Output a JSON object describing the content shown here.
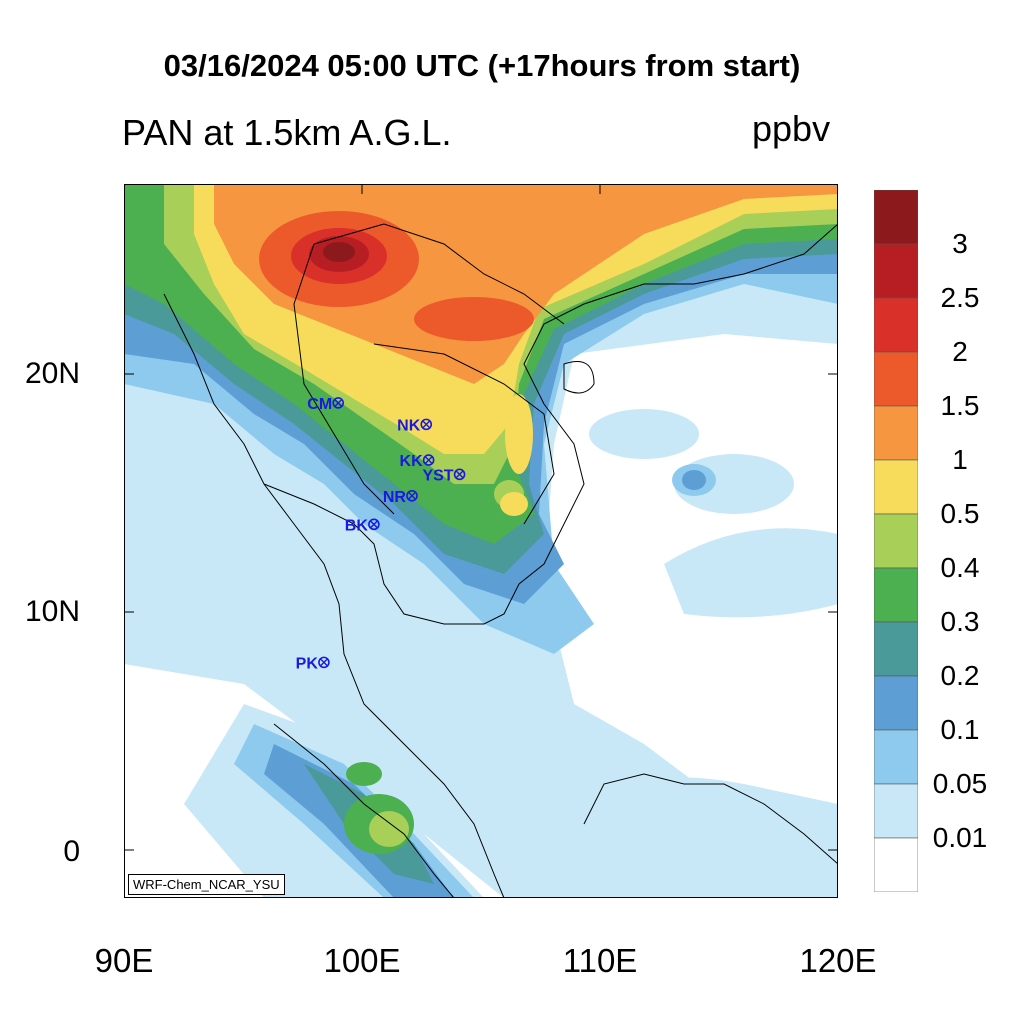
{
  "title": "03/16/2024 05:00 UTC (+17hours from start)",
  "subtitle": "PAN at 1.5km A.G.L.",
  "units": "ppbv",
  "credit": "WRF-Chem_NCAR_YSU",
  "lon_labels": [
    "90E",
    "100E",
    "110E",
    "120E"
  ],
  "lat_labels": [
    "20N",
    "10N",
    "0"
  ],
  "colorbar": {
    "labels": [
      "3",
      "2.5",
      "2",
      "1.5",
      "1",
      "0.5",
      "0.4",
      "0.3",
      "0.2",
      "0.1",
      "0.05",
      "0.01"
    ],
    "colors": [
      "#8c1a1d",
      "#b71e23",
      "#d9302a",
      "#ec5a2c",
      "#f69640",
      "#f7dc5c",
      "#a8cf58",
      "#4caf50",
      "#4a9a9a",
      "#5d9fd4",
      "#8dcaee",
      "#c8e8f7",
      "#ffffff"
    ]
  },
  "stations": [
    {
      "name": "CM",
      "lon": 99.0,
      "lat": 18.8
    },
    {
      "name": "NK",
      "lon": 102.7,
      "lat": 17.9
    },
    {
      "name": "KK",
      "lon": 102.8,
      "lat": 16.4
    },
    {
      "name": "YST",
      "lon": 104.1,
      "lat": 15.8
    },
    {
      "name": "NR",
      "lon": 102.1,
      "lat": 14.9
    },
    {
      "name": "BK",
      "lon": 100.5,
      "lat": 13.7
    },
    {
      "name": "PK",
      "lon": 98.4,
      "lat": 7.9
    }
  ]
}
